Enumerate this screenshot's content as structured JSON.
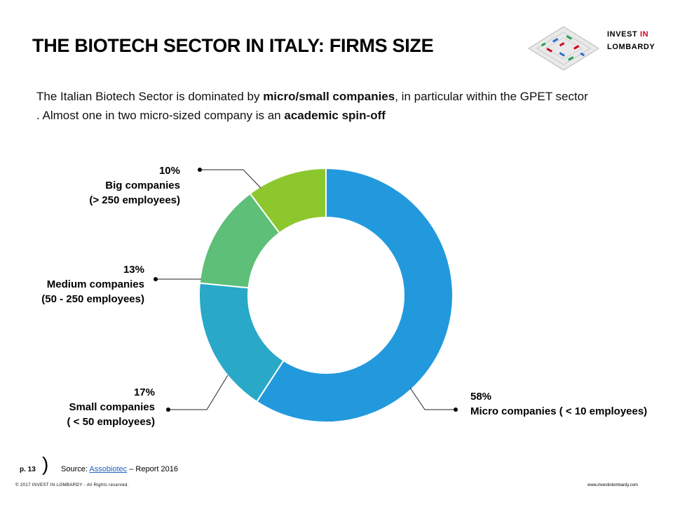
{
  "header": {
    "title": "THE BIOTECH SECTOR IN ITALY: FIRMS SIZE",
    "logo": {
      "line1_a": "INVEST ",
      "line1_b": "IN",
      "line2": "LOMBARDY",
      "accent_color": "#d0021b"
    }
  },
  "intro": {
    "p1": "The Italian Biotech Sector is dominated by ",
    "b1": "micro/small  companies",
    "p2": ", in particular within the GPET sector . Almost one in two micro-sized company is an ",
    "b2": "academic spin-off"
  },
  "chart_data": {
    "type": "pie",
    "donut": true,
    "categories": [
      "Micro companies ( < 10 employees)",
      "Small companies ( < 50 employees)",
      "Medium companies (50 - 250 employees)",
      "Big companies (> 250 employees)"
    ],
    "values": [
      58,
      17,
      13,
      10
    ],
    "unit": "%",
    "colors": [
      "#2299dd",
      "#29a8c8",
      "#5dbf78",
      "#8cc72d"
    ],
    "labels": [
      {
        "pct": "58%",
        "line1": "Micro companies ( < 10 employees)",
        "line2": ""
      },
      {
        "pct": "17%",
        "line1": "Small companies",
        "line2": "( < 50 employees)"
      },
      {
        "pct": "13%",
        "line1": "Medium companies",
        "line2": "(50 - 250 employees)"
      },
      {
        "pct": "10%",
        "line1": "Big companies",
        "line2": "(> 250 employees)"
      }
    ]
  },
  "footer": {
    "page": "p. 13",
    "source_prefix": "Source: ",
    "source_link": "Assobiotec",
    "source_suffix": " – Report 2016",
    "copyright": "© 2017 INVEST IN LOMBARDY - All Rights reserved.",
    "website": "www.investinlombardy.com"
  }
}
